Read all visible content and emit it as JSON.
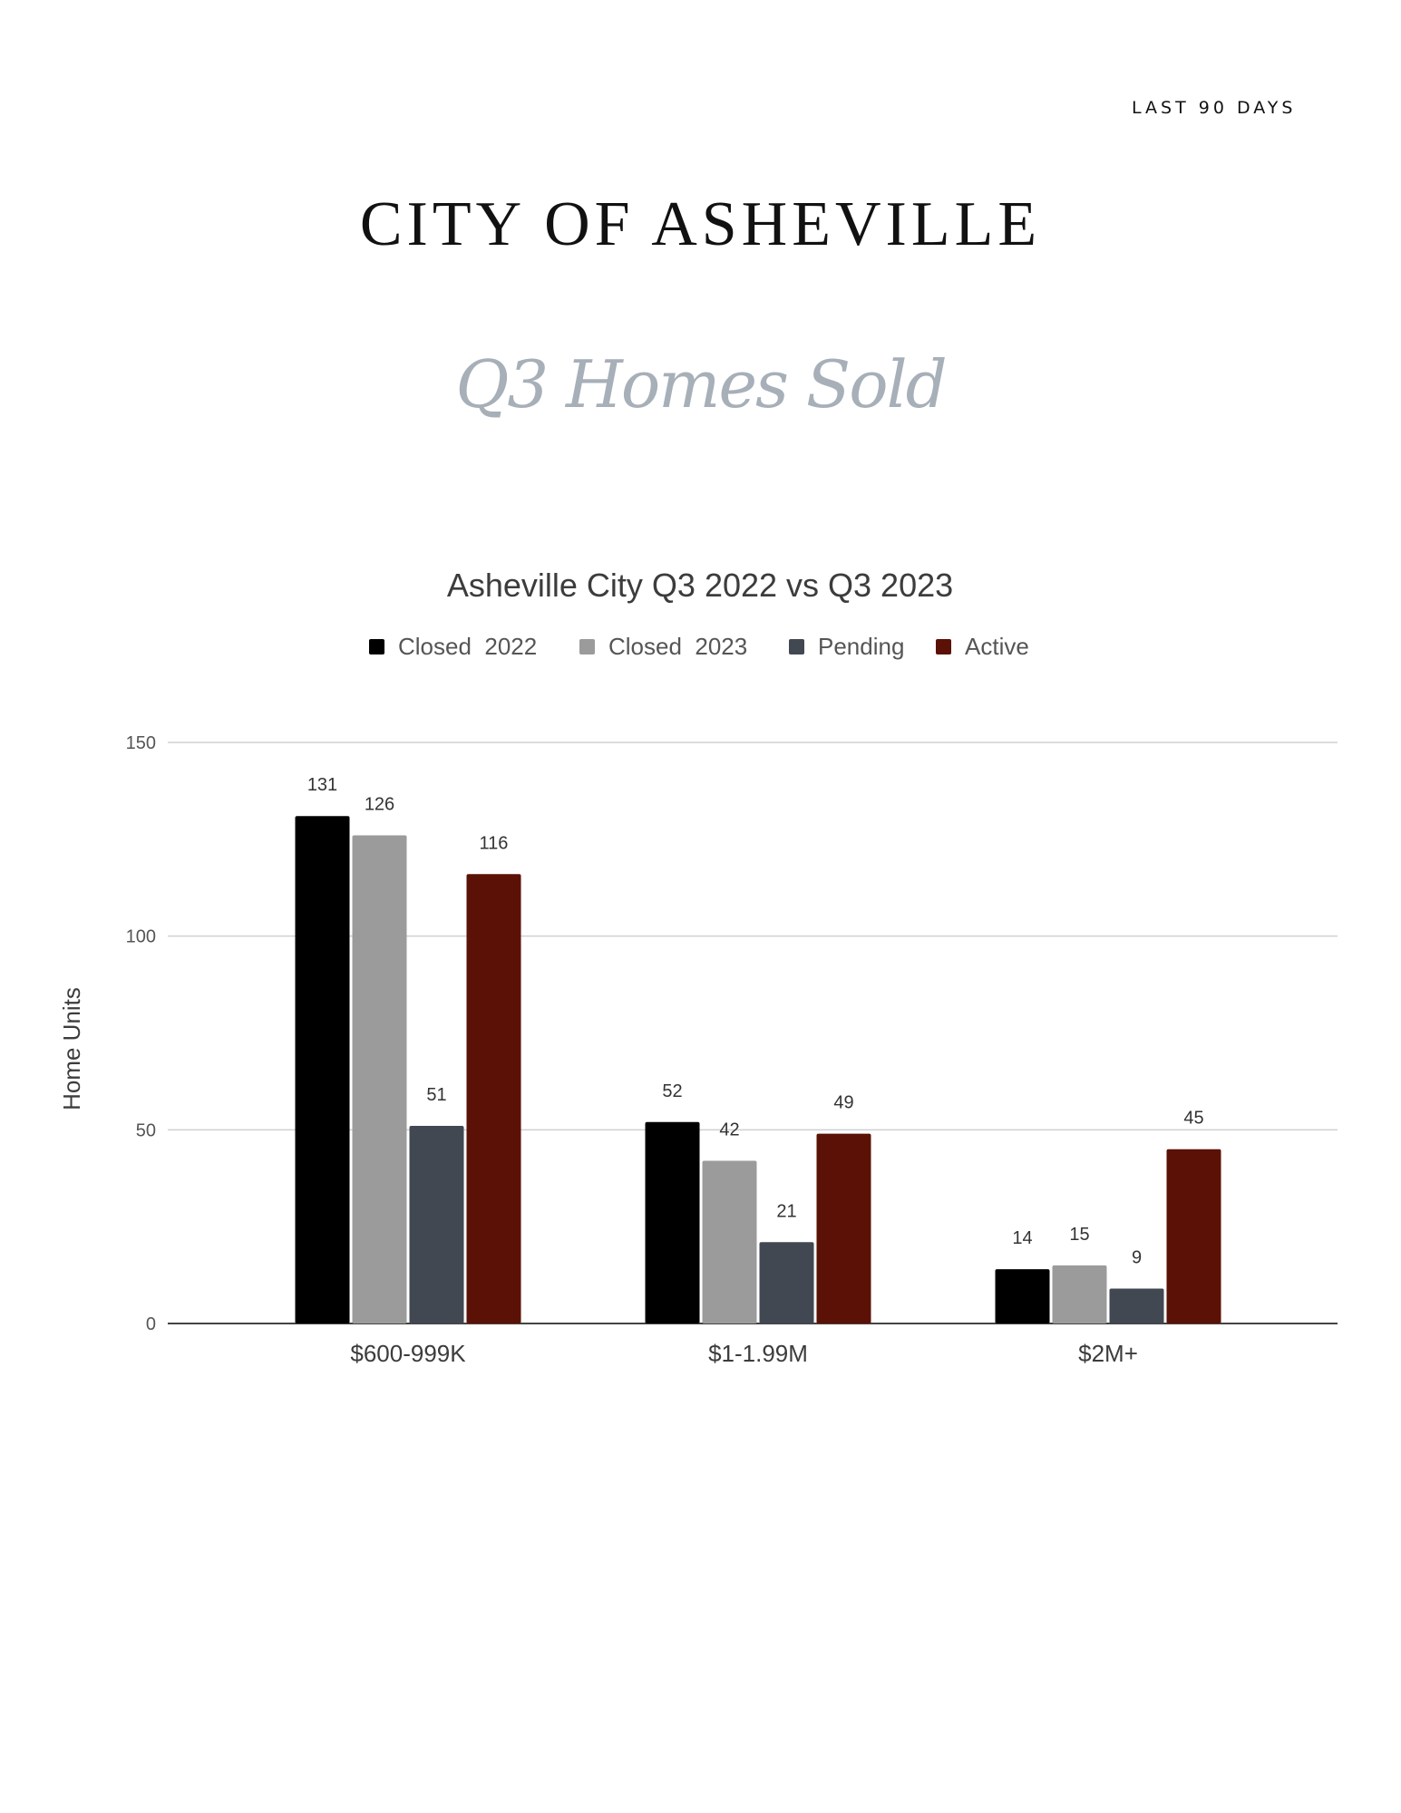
{
  "header": {
    "period": "LAST 90 DAYS",
    "title": "CITY OF ASHEVILLE",
    "subtitle": "Q3 Homes Sold"
  },
  "chart_data": {
    "type": "bar",
    "title": "Asheville City Q3 2022 vs Q3 2023",
    "xlabel": "",
    "ylabel": "Home Units",
    "ylim": [
      0,
      150
    ],
    "yticks": [
      0,
      50,
      100,
      150
    ],
    "grid": true,
    "legend_position": "top",
    "categories": [
      "$600-999K",
      "$1-1.99M",
      "$2M+"
    ],
    "series": [
      {
        "name": "Closed  2022",
        "color": "#000000",
        "values": [
          131,
          52,
          14
        ]
      },
      {
        "name": "Closed  2023",
        "color": "#9b9b9b",
        "values": [
          126,
          42,
          15
        ]
      },
      {
        "name": "Pending",
        "color": "#424851",
        "values": [
          51,
          21,
          9
        ]
      },
      {
        "name": "Active",
        "color": "#5b1105",
        "values": [
          116,
          49,
          45
        ]
      }
    ]
  }
}
